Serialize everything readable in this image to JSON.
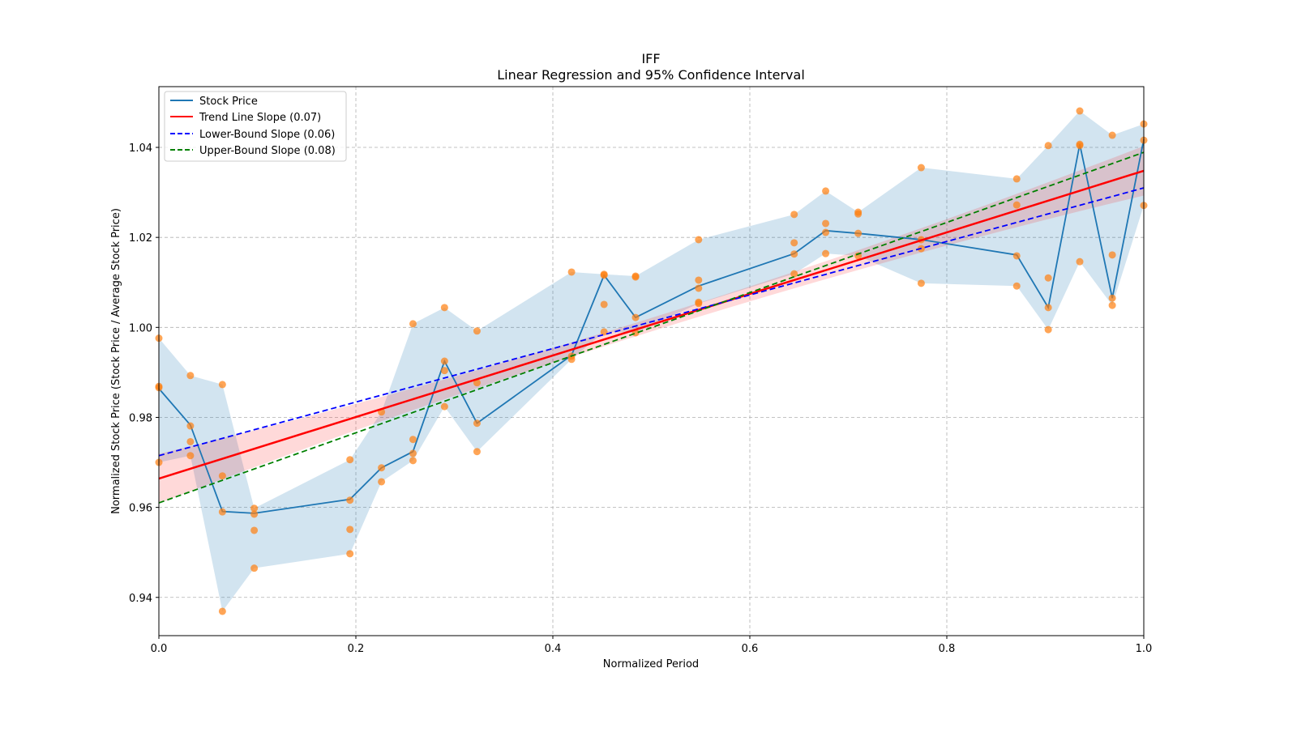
{
  "chart_data": {
    "type": "line",
    "title": "IFF",
    "subtitle": "Linear Regression and 95% Confidence Interval",
    "xlabel": "Normalized Period",
    "ylabel": "Normalized Stock Price (Stock Price / Average Stock Price)",
    "xlim": [
      0,
      1
    ],
    "ylim": [
      0.9315,
      1.0535
    ],
    "xticks": [
      "0.0",
      "0.2",
      "0.4",
      "0.6",
      "0.8",
      "1.0"
    ],
    "xtick_values": [
      0,
      0.2,
      0.4,
      0.6,
      0.8,
      1.0
    ],
    "yticks": [
      "0.94",
      "0.96",
      "0.98",
      "1.00",
      "1.02",
      "1.04"
    ],
    "ytick_values": [
      0.94,
      0.96,
      0.98,
      1.0,
      1.02,
      1.04
    ],
    "grid": true,
    "legend_position": "top-left",
    "legend": [
      "Stock Price",
      "Trend Line Slope (0.07)",
      "Lower-Bound Slope (0.06)",
      "Upper-Bound Slope (0.08)"
    ],
    "colors": {
      "stock": "#1f77b4",
      "trend": "#ff0000",
      "lower": "#0000ff",
      "upper": "#008000",
      "scatter": "#ff7f0e",
      "band": "#1f77b4",
      "trend_ci": "#ff0000"
    },
    "stock_price": {
      "x": [
        0,
        0.032,
        0.0645,
        0.0968,
        0.194,
        0.226,
        0.258,
        0.29,
        0.323,
        0.419,
        0.452,
        0.484,
        0.548,
        0.645,
        0.677,
        0.71,
        0.774,
        0.871,
        0.903,
        0.935,
        0.968,
        1.0
      ],
      "y": [
        0.9864,
        0.9783,
        0.9591,
        0.9587,
        0.9618,
        0.9688,
        0.9724,
        0.9925,
        0.9787,
        0.9938,
        1.0116,
        1.0022,
        1.0092,
        1.0164,
        1.0215,
        1.0209,
        1.0195,
        1.0161,
        1.0044,
        1.0407,
        1.0065,
        1.0418
      ]
    },
    "scatter": [
      [
        0,
        [
          0.9976,
          0.9869,
          0.9866,
          0.97
        ]
      ],
      [
        0.032,
        [
          0.9893,
          0.9781,
          0.9746,
          0.9715
        ]
      ],
      [
        0.0645,
        [
          0.9873,
          0.967,
          0.959,
          0.9369
        ]
      ],
      [
        0.0968,
        [
          0.9598,
          0.9585,
          0.9549,
          0.9465
        ]
      ],
      [
        0.194,
        [
          0.9706,
          0.9616,
          0.9551,
          0.9497
        ]
      ],
      [
        0.226,
        [
          0.9812,
          0.9688,
          0.9657
        ]
      ],
      [
        0.258,
        [
          1.0008,
          0.9751,
          0.972,
          0.9704
        ]
      ],
      [
        0.29,
        [
          1.0044,
          0.9925,
          0.9904,
          0.9824
        ]
      ],
      [
        0.323,
        [
          0.9992,
          0.9877,
          0.9787,
          0.9724
        ]
      ],
      [
        0.419,
        [
          1.0123,
          0.9936,
          0.9929
        ]
      ],
      [
        0.452,
        [
          1.0118,
          1.0116,
          1.0051,
          0.999
        ]
      ],
      [
        0.484,
        [
          1.0114,
          1.0112,
          1.0022,
          0.9988
        ]
      ],
      [
        0.548,
        [
          1.0195,
          1.0105,
          1.0087,
          1.0056,
          1.0053
        ]
      ],
      [
        0.645,
        [
          1.0251,
          1.0188,
          1.0163,
          1.0119
        ]
      ],
      [
        0.677,
        [
          1.0303,
          1.0231,
          1.0211,
          1.0164
        ]
      ],
      [
        0.71,
        [
          1.0256,
          1.0252,
          1.0209,
          1.0159
        ]
      ],
      [
        0.774,
        [
          1.0355,
          1.0195,
          1.0175,
          1.0098
        ]
      ],
      [
        0.871,
        [
          1.033,
          1.0272,
          1.0159,
          1.0092
        ]
      ],
      [
        0.903,
        [
          1.0404,
          1.011,
          1.0044,
          0.9995
        ]
      ],
      [
        0.935,
        [
          1.0481,
          1.0407,
          1.0404,
          1.0146
        ]
      ],
      [
        0.968,
        [
          1.0427,
          1.0161,
          1.0065,
          1.0049
        ]
      ],
      [
        1.0,
        [
          1.0452,
          1.0416,
          1.0271
        ]
      ]
    ],
    "trend_line": {
      "y0": 0.9664,
      "y1": 1.0348,
      "slope": 0.07
    },
    "lower_bound": {
      "y0": 0.9715,
      "y1": 1.031,
      "slope": 0.06
    },
    "upper_bound": {
      "y0": 0.961,
      "y1": 1.0389,
      "slope": 0.08
    }
  }
}
